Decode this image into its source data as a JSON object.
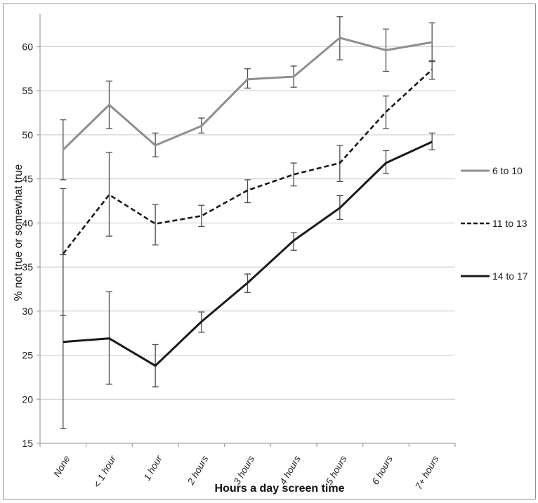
{
  "figure": {
    "background": "#ffffff",
    "frame_color": "#8f8f8f",
    "gridline_color": "#c9c9c9",
    "axis_color": "#a6a6a6",
    "error_bar_color": "#4f4f4f"
  },
  "chart_data": {
    "type": "line",
    "title": "",
    "xlabel": "Hours a day screen time",
    "ylabel": "% not true or somewhat true",
    "categories": [
      "None",
      "< 1 hour",
      "1 hour",
      "2 hours",
      "3 hours",
      "4 hours",
      "5 hours",
      "6 hours",
      "7+ hours"
    ],
    "y_ticks": [
      15,
      20,
      25,
      30,
      35,
      40,
      45,
      50,
      55,
      60
    ],
    "ylim": [
      15,
      63.7
    ],
    "grid": "horizontal",
    "legend_position": "right",
    "error_bars": true,
    "series": [
      {
        "name": "6 to 10",
        "color": "#8f8f8f",
        "line_style": "solid",
        "line_width": 3,
        "values": [
          48.3,
          53.4,
          48.8,
          51.0,
          56.3,
          56.6,
          61.0,
          59.6,
          60.5
        ],
        "err_low": [
          44.9,
          50.7,
          47.5,
          50.2,
          55.3,
          55.4,
          58.5,
          57.2,
          58.3
        ],
        "err_high": [
          51.7,
          56.1,
          50.2,
          51.9,
          57.5,
          57.8,
          63.4,
          62.0,
          62.7
        ]
      },
      {
        "name": "11 to 13",
        "color": "#1a1a1a",
        "line_style": "dashed",
        "line_width": 2.6,
        "values": [
          36.5,
          43.2,
          39.9,
          40.8,
          43.7,
          45.5,
          46.8,
          52.6,
          57.4
        ],
        "err_low": [
          29.5,
          38.5,
          37.5,
          39.6,
          42.3,
          44.2,
          44.7,
          50.7,
          56.3
        ],
        "err_high": [
          43.9,
          48.0,
          42.1,
          42.0,
          44.9,
          46.8,
          48.8,
          54.4,
          58.4
        ]
      },
      {
        "name": "14 to 17",
        "color": "#1a1a1a",
        "line_style": "solid",
        "line_width": 3,
        "values": [
          26.5,
          26.9,
          23.8,
          28.8,
          33.2,
          38.0,
          41.7,
          46.8,
          49.2
        ],
        "err_low": [
          16.7,
          21.7,
          21.4,
          27.6,
          32.1,
          36.9,
          40.4,
          45.6,
          48.3
        ],
        "err_high": [
          36.4,
          32.2,
          26.2,
          29.9,
          34.2,
          38.9,
          43.1,
          48.2,
          50.2
        ]
      }
    ]
  }
}
